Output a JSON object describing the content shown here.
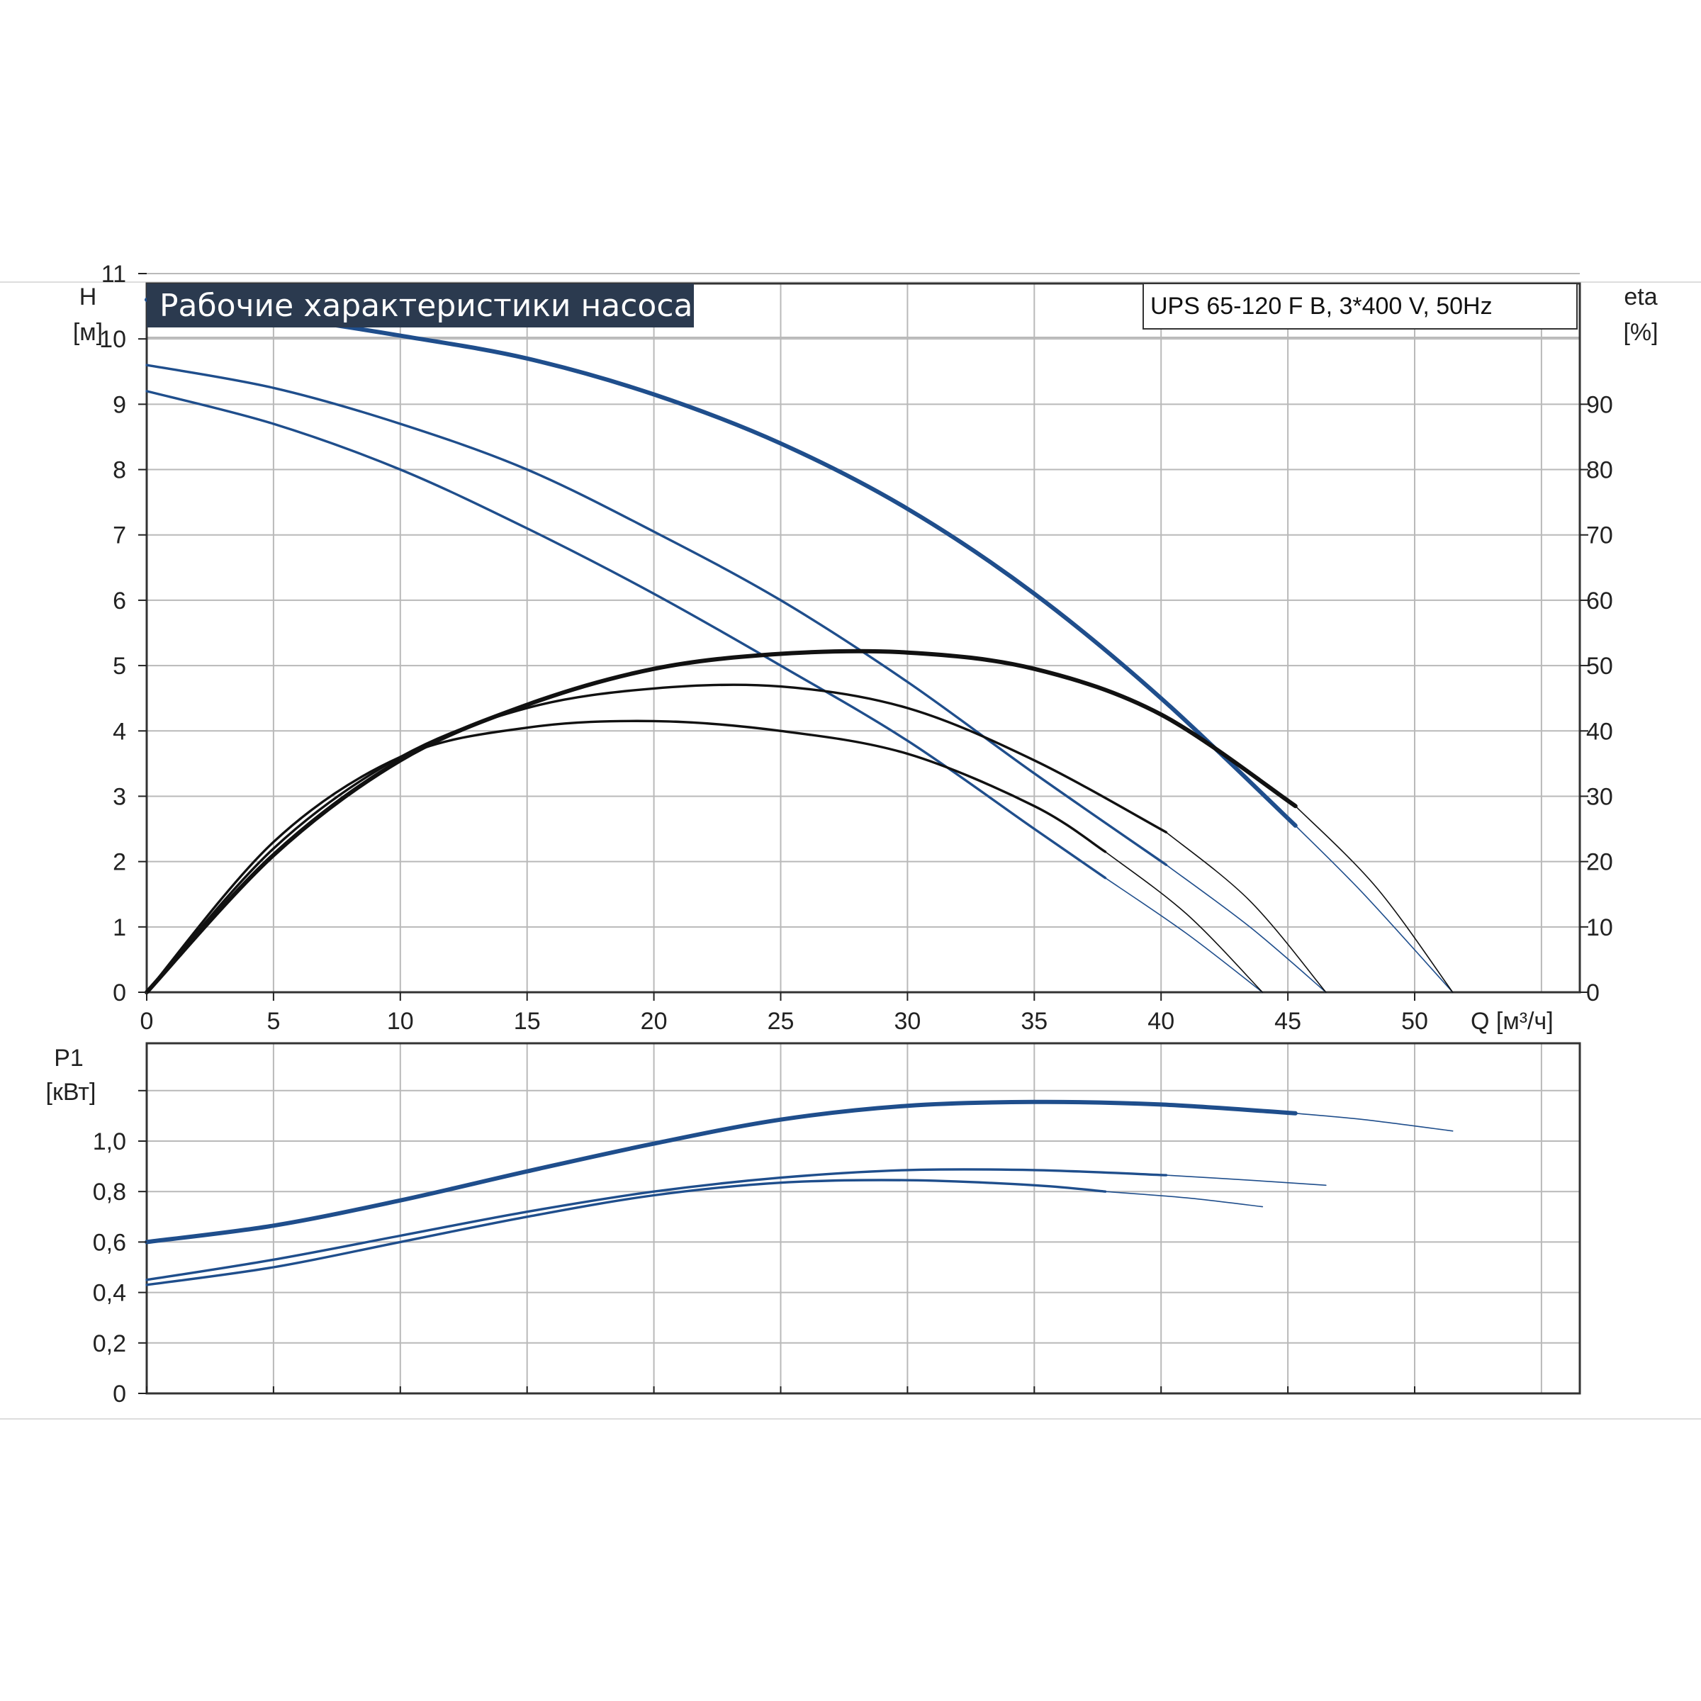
{
  "title": "Рабочие характеристики насоса",
  "model": "UPS 65-120 F B, 3*400 V, 50Hz",
  "colors": {
    "head": "#1f4e8c",
    "efficiency": "#111111",
    "power": "#1f4e8c",
    "grid": "#b9b9b9",
    "title_bg": "#2b3a4f",
    "axis": "#222222"
  },
  "chart_data": [
    {
      "type": "line",
      "xlabel": "Q [м³/ч]",
      "ylabel_left": {
        "name": "H",
        "unit": "[м]"
      },
      "ylabel_right": {
        "name": "eta",
        "unit": "[%]"
      },
      "xlim": [
        0,
        56
      ],
      "ylim_left": [
        0,
        12
      ],
      "ylim_right": [
        0,
        120
      ],
      "x_ticks": [
        0,
        5,
        10,
        15,
        20,
        25,
        30,
        35,
        40,
        45,
        50
      ],
      "y_ticks_left": [
        0,
        1,
        2,
        3,
        4,
        5,
        6,
        7,
        8,
        9,
        10,
        11
      ],
      "y_ticks_right": [
        0,
        10,
        20,
        30,
        40,
        50,
        60,
        70,
        80,
        90
      ],
      "grid": true,
      "series": [
        {
          "group": "head",
          "style": "thick",
          "x": [
            0,
            5,
            10,
            15,
            20,
            25,
            30,
            35,
            40,
            45.3
          ],
          "y": [
            10.6,
            10.35,
            10.05,
            9.7,
            9.15,
            8.4,
            7.4,
            6.1,
            4.5,
            2.55
          ]
        },
        {
          "group": "head",
          "style": "extension",
          "x": [
            45.3,
            48,
            51.5
          ],
          "y": [
            2.55,
            1.5,
            0
          ]
        },
        {
          "group": "head",
          "style": "normal",
          "x": [
            0,
            5,
            10,
            15,
            20,
            25,
            30,
            35,
            40.2
          ],
          "y": [
            9.6,
            9.25,
            8.7,
            8.0,
            7.05,
            6.0,
            4.75,
            3.35,
            1.95
          ]
        },
        {
          "group": "head",
          "style": "extension",
          "x": [
            40.2,
            43.5,
            46.5
          ],
          "y": [
            1.95,
            1.0,
            0
          ]
        },
        {
          "group": "head",
          "style": "normal",
          "x": [
            0,
            5,
            10,
            15,
            20,
            25,
            30,
            35,
            37.8
          ],
          "y": [
            9.2,
            8.7,
            8.0,
            7.1,
            6.1,
            5.0,
            3.85,
            2.5,
            1.75
          ]
        },
        {
          "group": "head",
          "style": "extension",
          "x": [
            37.8,
            41,
            44
          ],
          "y": [
            1.75,
            0.9,
            0
          ]
        },
        {
          "group": "efficiency",
          "style": "thick",
          "x": [
            0,
            5,
            10,
            15,
            20,
            25,
            30,
            35,
            40,
            45.3
          ],
          "y": [
            0,
            21,
            35.5,
            44,
            49.5,
            51.8,
            52,
            49.5,
            42.5,
            28.5
          ]
        },
        {
          "group": "efficiency",
          "style": "extension",
          "x": [
            45.3,
            48.5,
            51.5
          ],
          "y": [
            28.5,
            16,
            0
          ]
        },
        {
          "group": "efficiency",
          "style": "normal",
          "x": [
            0,
            5,
            10,
            15,
            20,
            25,
            30,
            35,
            40.2
          ],
          "y": [
            0,
            22,
            36,
            43.5,
            46.5,
            46.8,
            43.5,
            35.5,
            24.5
          ]
        },
        {
          "group": "efficiency",
          "style": "extension",
          "x": [
            40.2,
            43.5,
            46.5
          ],
          "y": [
            24.5,
            14,
            0
          ]
        },
        {
          "group": "efficiency",
          "style": "normal",
          "x": [
            0,
            5,
            10,
            15,
            20,
            25,
            30,
            35,
            37.8
          ],
          "y": [
            0,
            23,
            36,
            40.5,
            41.5,
            40,
            36.5,
            28.5,
            21.5
          ]
        },
        {
          "group": "efficiency",
          "style": "extension",
          "x": [
            37.8,
            41,
            44
          ],
          "y": [
            21.5,
            12,
            0
          ]
        }
      ]
    },
    {
      "type": "line",
      "xlabel": "",
      "ylabel": {
        "name": "P1",
        "unit": "[кВт]"
      },
      "xlim": [
        0,
        56
      ],
      "ylim": [
        0,
        1.2
      ],
      "x_ticks": [
        0,
        5,
        10,
        15,
        20,
        25,
        30,
        35,
        40,
        45,
        50
      ],
      "y_ticks": [
        0,
        0.2,
        0.4,
        0.6,
        0.8,
        1.0
      ],
      "y_tick_labels": [
        "0",
        "0,2",
        "0,4",
        "0,6",
        "0,8",
        "1,0"
      ],
      "grid": true,
      "series": [
        {
          "group": "power",
          "style": "thick",
          "x": [
            0,
            5,
            10,
            15,
            20,
            25,
            30,
            35,
            40,
            45.3
          ],
          "y": [
            0.6,
            0.665,
            0.765,
            0.88,
            0.99,
            1.085,
            1.14,
            1.155,
            1.145,
            1.11
          ]
        },
        {
          "group": "power",
          "style": "extension",
          "x": [
            45.3,
            48,
            51.5
          ],
          "y": [
            1.11,
            1.085,
            1.04
          ]
        },
        {
          "group": "power",
          "style": "normal",
          "x": [
            0,
            5,
            10,
            15,
            20,
            25,
            30,
            35,
            40.2
          ],
          "y": [
            0.45,
            0.53,
            0.625,
            0.72,
            0.8,
            0.855,
            0.885,
            0.885,
            0.865
          ]
        },
        {
          "group": "power",
          "style": "extension",
          "x": [
            40.2,
            43.5,
            46.5
          ],
          "y": [
            0.865,
            0.845,
            0.825
          ]
        },
        {
          "group": "power",
          "style": "normal",
          "x": [
            0,
            5,
            10,
            15,
            20,
            25,
            30,
            35,
            37.8
          ],
          "y": [
            0.43,
            0.5,
            0.6,
            0.7,
            0.785,
            0.835,
            0.845,
            0.825,
            0.8
          ]
        },
        {
          "group": "power",
          "style": "extension",
          "x": [
            37.8,
            41,
            44
          ],
          "y": [
            0.8,
            0.775,
            0.74
          ]
        }
      ]
    }
  ]
}
